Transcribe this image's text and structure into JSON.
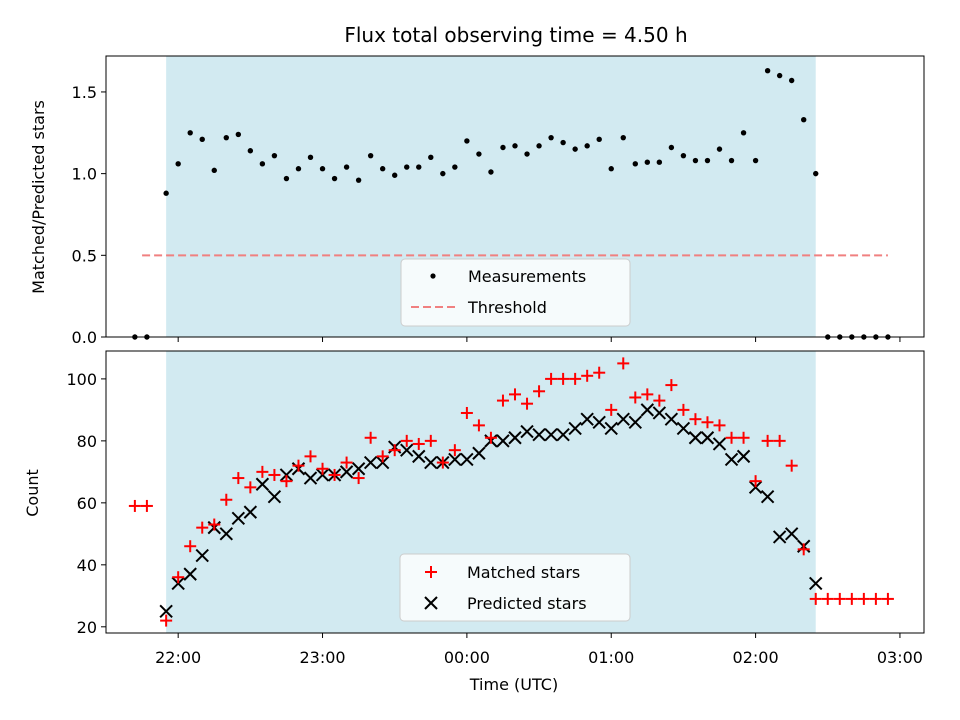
{
  "chart_data": [
    {
      "type": "scatter",
      "title": "Flux total observing time = 4.50 h",
      "xlabel": "",
      "ylabel": "Matched/Predicted stars",
      "ylim": [
        0,
        1.72
      ],
      "yticks": [
        "0.0",
        "0.5",
        "1.0",
        "1.5"
      ],
      "ytick_values": [
        0,
        0.5,
        1.0,
        1.5
      ],
      "x_domain_min": [
        "21:30",
        "03:10"
      ],
      "shaded_interval": [
        "21:55",
        "02:25"
      ],
      "shade_color": "#add8e6",
      "legend_position": "lower-center",
      "series": [
        {
          "name": "Measurements",
          "marker": "dot",
          "color": "#000000",
          "x": [
            "21:42",
            "21:47",
            "21:55",
            "22:00",
            "22:05",
            "22:10",
            "22:15",
            "22:20",
            "22:25",
            "22:30",
            "22:35",
            "22:40",
            "22:45",
            "22:50",
            "22:55",
            "23:00",
            "23:05",
            "23:10",
            "23:15",
            "23:20",
            "23:25",
            "23:30",
            "23:35",
            "23:40",
            "23:45",
            "23:50",
            "23:55",
            "00:00",
            "00:05",
            "00:10",
            "00:15",
            "00:20",
            "00:25",
            "00:30",
            "00:35",
            "00:40",
            "00:45",
            "00:50",
            "00:55",
            "01:00",
            "01:05",
            "01:10",
            "01:15",
            "01:20",
            "01:25",
            "01:30",
            "01:35",
            "01:40",
            "01:45",
            "01:50",
            "01:55",
            "02:00",
            "02:05",
            "02:10",
            "02:15",
            "02:20",
            "02:25",
            "02:30",
            "02:35",
            "02:40",
            "02:45",
            "02:50",
            "02:55"
          ],
          "values": [
            0,
            0,
            0.88,
            1.06,
            1.25,
            1.21,
            1.02,
            1.22,
            1.24,
            1.14,
            1.06,
            1.11,
            0.97,
            1.03,
            1.1,
            1.03,
            0.97,
            1.04,
            0.96,
            1.11,
            1.03,
            0.99,
            1.04,
            1.04,
            1.1,
            1.0,
            1.04,
            1.2,
            1.12,
            1.01,
            1.16,
            1.17,
            1.12,
            1.17,
            1.22,
            1.19,
            1.15,
            1.17,
            1.21,
            1.03,
            1.22,
            1.06,
            1.07,
            1.07,
            1.16,
            1.11,
            1.08,
            1.08,
            1.15,
            1.08,
            1.25,
            1.08,
            1.63,
            1.6,
            1.57,
            1.33,
            1.0,
            0,
            0,
            0,
            0,
            0,
            0
          ]
        },
        {
          "name": "Threshold",
          "marker": "dashed-line",
          "color": "#f08080",
          "x": [
            "21:45",
            "02:55"
          ],
          "values": [
            0.5,
            0.5
          ]
        }
      ]
    },
    {
      "type": "scatter",
      "title": "",
      "xlabel": "Time (UTC)",
      "ylabel": "Count",
      "ylim": [
        18,
        109
      ],
      "yticks": [
        "20",
        "40",
        "60",
        "80",
        "100"
      ],
      "ytick_values": [
        20,
        40,
        60,
        80,
        100
      ],
      "xticks": [
        "22:00",
        "23:00",
        "00:00",
        "01:00",
        "02:00",
        "03:00"
      ],
      "shaded_interval": [
        "21:55",
        "02:25"
      ],
      "shade_color": "#add8e6",
      "legend_position": "lower-center",
      "series": [
        {
          "name": "Matched stars",
          "marker": "plus",
          "color": "#ff0000",
          "x": [
            "21:42",
            "21:47",
            "21:55",
            "22:00",
            "22:05",
            "22:10",
            "22:15",
            "22:20",
            "22:25",
            "22:30",
            "22:35",
            "22:40",
            "22:45",
            "22:50",
            "22:55",
            "23:00",
            "23:05",
            "23:10",
            "23:15",
            "23:20",
            "23:25",
            "23:30",
            "23:35",
            "23:40",
            "23:45",
            "23:50",
            "23:55",
            "00:00",
            "00:05",
            "00:10",
            "00:15",
            "00:20",
            "00:25",
            "00:30",
            "00:35",
            "00:40",
            "00:45",
            "00:50",
            "00:55",
            "01:00",
            "01:05",
            "01:10",
            "01:15",
            "01:20",
            "01:25",
            "01:30",
            "01:35",
            "01:40",
            "01:45",
            "01:50",
            "01:55",
            "02:00",
            "02:05",
            "02:10",
            "02:15",
            "02:20",
            "02:25",
            "02:30",
            "02:35",
            "02:40",
            "02:45",
            "02:50",
            "02:55"
          ],
          "values": [
            59,
            59,
            22,
            36,
            46,
            52,
            53,
            61,
            68,
            65,
            70,
            69,
            67,
            72,
            75,
            71,
            69,
            73,
            68,
            81,
            75,
            77,
            80,
            79,
            80,
            73,
            77,
            89,
            85,
            81,
            93,
            95,
            92,
            96,
            100,
            100,
            100,
            101,
            102,
            90,
            105,
            94,
            95,
            93,
            98,
            90,
            87,
            86,
            85,
            81,
            81,
            67,
            80,
            80,
            72,
            45,
            29,
            29,
            29,
            29,
            29,
            29,
            29
          ]
        },
        {
          "name": "Predicted stars",
          "marker": "x",
          "color": "#000000",
          "x": [
            "21:55",
            "22:00",
            "22:05",
            "22:10",
            "22:15",
            "22:20",
            "22:25",
            "22:30",
            "22:35",
            "22:40",
            "22:45",
            "22:50",
            "22:55",
            "23:00",
            "23:05",
            "23:10",
            "23:15",
            "23:20",
            "23:25",
            "23:30",
            "23:35",
            "23:40",
            "23:45",
            "23:50",
            "23:55",
            "00:00",
            "00:05",
            "00:10",
            "00:15",
            "00:20",
            "00:25",
            "00:30",
            "00:35",
            "00:40",
            "00:45",
            "00:50",
            "00:55",
            "01:00",
            "01:05",
            "01:10",
            "01:15",
            "01:20",
            "01:25",
            "01:30",
            "01:35",
            "01:40",
            "01:45",
            "01:50",
            "01:55",
            "02:00",
            "02:05",
            "02:10",
            "02:15",
            "02:20",
            "02:25"
          ],
          "values": [
            25,
            34,
            37,
            43,
            52,
            50,
            55,
            57,
            66,
            62,
            69,
            71,
            68,
            69,
            69,
            70,
            71,
            73,
            73,
            78,
            77,
            75,
            73,
            73,
            74,
            74,
            76,
            80,
            80,
            81,
            83,
            82,
            82,
            82,
            84,
            87,
            86,
            84,
            87,
            86,
            90,
            89,
            87,
            84,
            81,
            81,
            79,
            74,
            75,
            65,
            62,
            49,
            50,
            46,
            34
          ]
        }
      ]
    }
  ]
}
